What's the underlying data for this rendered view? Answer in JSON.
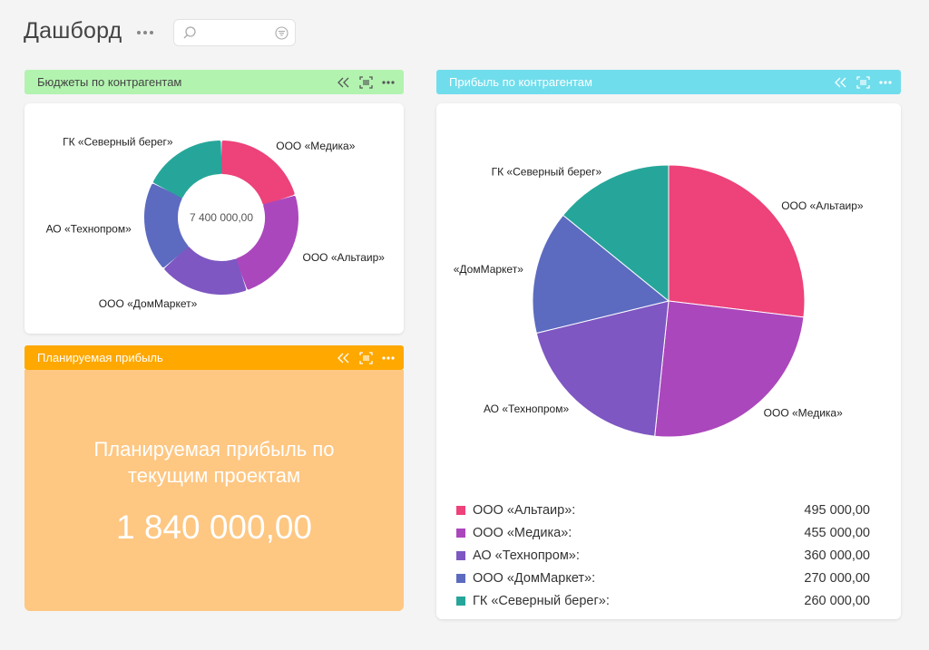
{
  "page": {
    "title": "Дашборд",
    "search": {
      "placeholder": "",
      "value": ""
    }
  },
  "panels": {
    "budgets": {
      "title": "Бюджеты по контрагентам",
      "color": "#b2f3b0"
    },
    "profit": {
      "title": "Прибыль по контрагентам",
      "color": "#70ddec"
    },
    "planned": {
      "title": "Планируемая прибыль",
      "color": "#fea800",
      "caption": "Планируемая прибыль по текущим проектам",
      "value": "1 840 000,00"
    }
  },
  "colors": {
    "pink": "#ed427a",
    "magenta": "#ab47bc",
    "violet": "#7e57c2",
    "blue": "#5c6bc0",
    "teal": "#26a69a"
  },
  "chart_data": [
    {
      "type": "pie",
      "variant": "donut",
      "center_label": "7 400 000,00",
      "slices": [
        {
          "label": "ООО «Медика»",
          "value": 1500000,
          "color": "#ed427a"
        },
        {
          "label": "ООО «Альтаир»",
          "value": 1800000,
          "color": "#ab47bc"
        },
        {
          "label": "ООО «ДомМаркет»",
          "value": 1400000,
          "color": "#7e57c2"
        },
        {
          "label": "АО «Технопром»",
          "value": 1400000,
          "color": "#5c6bc0"
        },
        {
          "label": "ГК «Северный берег»",
          "value": 1300000,
          "color": "#26a69a"
        }
      ]
    },
    {
      "type": "pie",
      "slices": [
        {
          "label": "ООО «Альтаир»",
          "value": 495000,
          "color": "#ed427a"
        },
        {
          "label": "ООО «Медика»",
          "value": 455000,
          "color": "#ab47bc"
        },
        {
          "label": "АО «Технопром»",
          "value": 360000,
          "color": "#7e57c2"
        },
        {
          "label": "«ДомМаркет»",
          "value": 270000,
          "color": "#5c6bc0"
        },
        {
          "label": "ГК «Северный берег»",
          "value": 260000,
          "color": "#26a69a"
        }
      ],
      "legend": [
        {
          "label": "ООО «Альтаир»:",
          "value": "495 000,00",
          "color": "#ed427a"
        },
        {
          "label": "ООО «Медика»:",
          "value": "455 000,00",
          "color": "#ab47bc"
        },
        {
          "label": "АО «Технопром»:",
          "value": "360 000,00",
          "color": "#7e57c2"
        },
        {
          "label": "ООО «ДомМаркет»:",
          "value": "270 000,00",
          "color": "#5c6bc0"
        },
        {
          "label": "ГК «Северный берег»:",
          "value": "260 000,00",
          "color": "#26a69a"
        }
      ]
    }
  ]
}
